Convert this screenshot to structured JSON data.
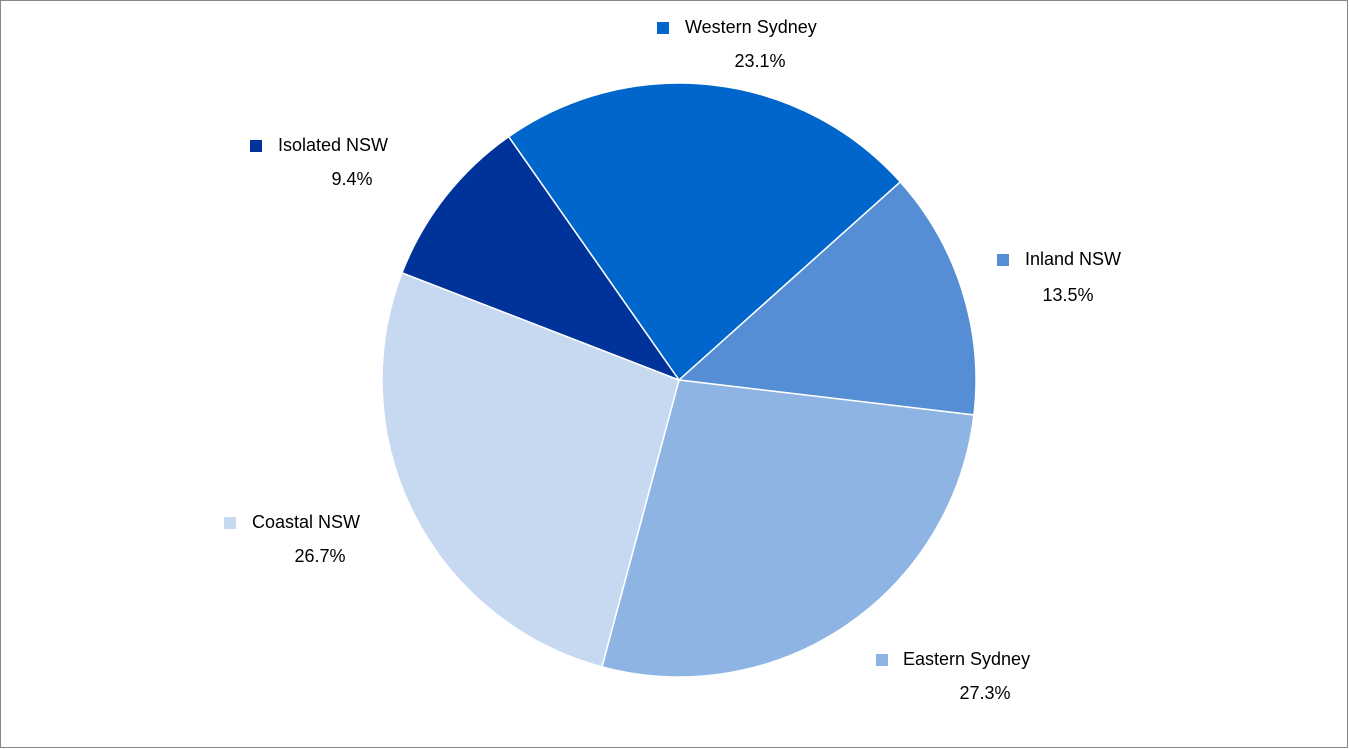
{
  "chart_data": {
    "type": "pie",
    "categories": [
      "Western Sydney",
      "Inland NSW",
      "Eastern Sydney",
      "Coastal NSW",
      "Isolated NSW"
    ],
    "values": [
      23.1,
      13.5,
      27.3,
      26.7,
      9.4
    ],
    "value_labels": [
      "23.1%",
      "13.5%",
      "27.3%",
      "26.7%",
      "9.4%"
    ],
    "colors": [
      "#0066cc",
      "#558ed5",
      "#8eb4e3",
      "#c6d9f1",
      "#003399"
    ]
  }
}
